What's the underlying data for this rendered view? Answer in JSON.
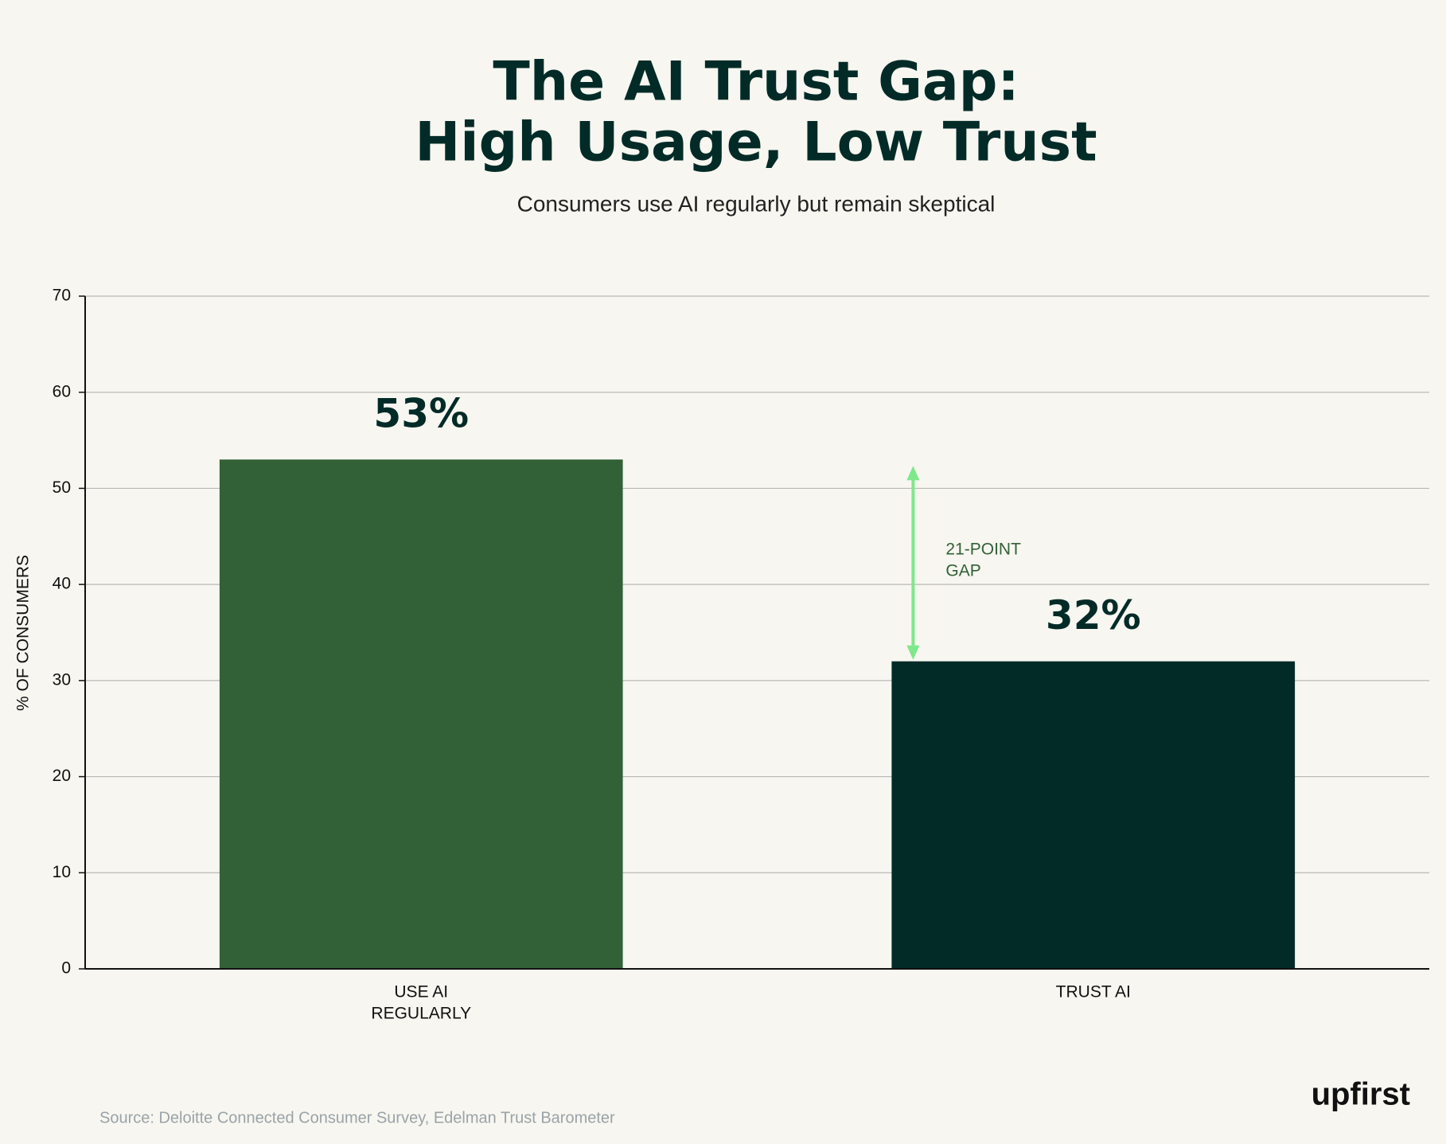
{
  "chart_data": {
    "type": "bar",
    "title": [
      "The AI Trust Gap:",
      "High Usage, Low Trust"
    ],
    "subtitle": "Consumers use AI regularly but remain skeptical",
    "y_label": "% OF CONSUMERS",
    "categories": [
      [
        "USE AI",
        "REGULARLY"
      ],
      [
        "TRUST AI"
      ]
    ],
    "values": [
      53,
      32
    ],
    "value_labels": [
      "53%",
      "32%"
    ],
    "colors": [
      "#336137",
      "#022b27"
    ],
    "ylim": [
      0,
      70
    ],
    "yticks": [
      0,
      10,
      20,
      30,
      40,
      50,
      60,
      70
    ],
    "grid": true,
    "annotation": {
      "text": [
        "21-POINT",
        "GAP"
      ],
      "color": "#7ee88a"
    },
    "source": "Source: Deloitte Connected Consumer Survey, Edelman Trust Barometer",
    "logo": "upfirst"
  }
}
